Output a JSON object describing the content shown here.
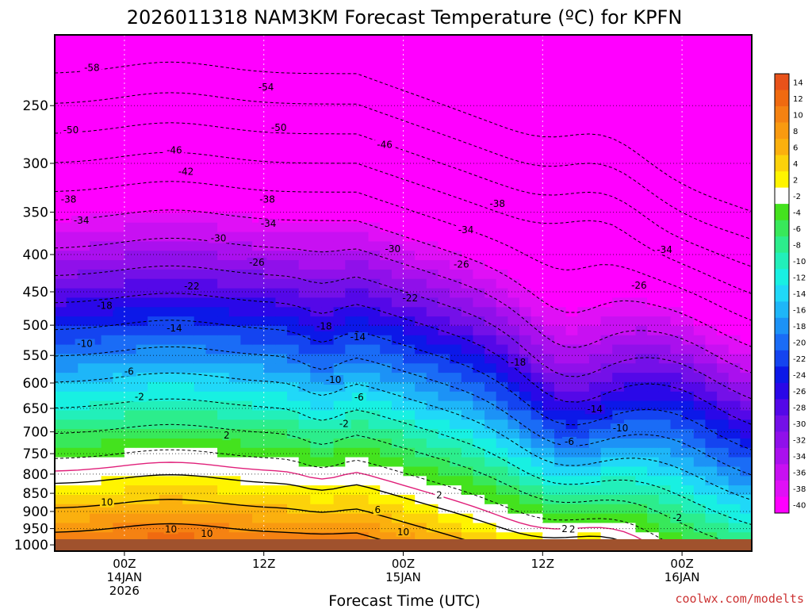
{
  "chart_data": {
    "type": "heatmap",
    "title": "2026011318 NAM3KM Forecast Temperature (ºC) for KPFN",
    "xlabel": "Forecast Time (UTC)",
    "ylabel": "",
    "y_scale": "log",
    "y_reversed": true,
    "y_ticks": [
      250,
      300,
      350,
      400,
      450,
      500,
      550,
      600,
      650,
      700,
      750,
      800,
      850,
      900,
      950,
      1000
    ],
    "y_range": [
      1020,
      200
    ],
    "x_range_hours": [
      -6,
      54
    ],
    "x_ticks": [
      {
        "hour": 0,
        "lines": [
          "00Z",
          "14JAN",
          "2026"
        ]
      },
      {
        "hour": 12,
        "lines": [
          "12Z"
        ]
      },
      {
        "hour": 24,
        "lines": [
          "00Z",
          "15JAN"
        ]
      },
      {
        "hour": 36,
        "lines": [
          "12Z"
        ]
      },
      {
        "hour": 48,
        "lines": [
          "00Z",
          "16JAN"
        ]
      }
    ],
    "grid": true,
    "colorbar": {
      "levels": [
        14,
        12,
        10,
        8,
        6,
        4,
        2,
        -2,
        -4,
        -6,
        -8,
        -10,
        -12,
        -14,
        -16,
        -18,
        -20,
        -22,
        -24,
        -26,
        -28,
        -30,
        -32,
        -34,
        -36,
        -38,
        -40
      ],
      "colors": [
        "#e8521a",
        "#f06a10",
        "#f58212",
        "#f99a10",
        "#fbb00e",
        "#fcd20a",
        "#fff400",
        "#ffffff",
        "#44e21e",
        "#38e85a",
        "#2ced8c",
        "#22efba",
        "#18f0e2",
        "#20d8f8",
        "#1eb6f8",
        "#1c92f6",
        "#1a6cf6",
        "#1444f0",
        "#0c18e8",
        "#2a08e8",
        "#5408e8",
        "#7410e8",
        "#9010ea",
        "#aa10ee",
        "#c810f2",
        "#e010f6",
        "#ff00ff"
      ],
      "placement": "right"
    },
    "contour_labels": [
      {
        "value": "-58",
        "hour": -2.8,
        "p": 222
      },
      {
        "value": "-54",
        "hour": 12.2,
        "p": 236
      },
      {
        "value": "-50",
        "hour": -4.6,
        "p": 270
      },
      {
        "value": "-50",
        "hour": 13.3,
        "p": 268
      },
      {
        "value": "-46",
        "hour": 4.3,
        "p": 288
      },
      {
        "value": "-46",
        "hour": 22.4,
        "p": 283
      },
      {
        "value": "-42",
        "hour": 5.3,
        "p": 308
      },
      {
        "value": "-38",
        "hour": -4.8,
        "p": 336
      },
      {
        "value": "-38",
        "hour": 12.3,
        "p": 336
      },
      {
        "value": "-38",
        "hour": 32.1,
        "p": 341
      },
      {
        "value": "-34",
        "hour": -3.7,
        "p": 359
      },
      {
        "value": "-34",
        "hour": 12.4,
        "p": 363
      },
      {
        "value": "-34",
        "hour": 29.4,
        "p": 370
      },
      {
        "value": "-34",
        "hour": 46.5,
        "p": 394
      },
      {
        "value": "-30",
        "hour": 8.1,
        "p": 380
      },
      {
        "value": "-30",
        "hour": 23.1,
        "p": 393
      },
      {
        "value": "-26",
        "hour": 11.4,
        "p": 410
      },
      {
        "value": "-26",
        "hour": 29.0,
        "p": 413
      },
      {
        "value": "-26",
        "hour": 44.3,
        "p": 441
      },
      {
        "value": "-22",
        "hour": 5.8,
        "p": 442
      },
      {
        "value": "-22",
        "hour": 24.6,
        "p": 459
      },
      {
        "value": "-18",
        "hour": -1.7,
        "p": 470
      },
      {
        "value": "-18",
        "hour": 17.2,
        "p": 502
      },
      {
        "value": "-18",
        "hour": 33.9,
        "p": 562
      },
      {
        "value": "-14",
        "hour": 4.3,
        "p": 505
      },
      {
        "value": "-14",
        "hour": 20.1,
        "p": 519
      },
      {
        "value": "-14",
        "hour": 40.5,
        "p": 652
      },
      {
        "value": "-10",
        "hour": -3.4,
        "p": 530
      },
      {
        "value": "-10",
        "hour": 18.0,
        "p": 594
      },
      {
        "value": "-10",
        "hour": 42.7,
        "p": 692
      },
      {
        "value": "-6",
        "hour": 0.4,
        "p": 579
      },
      {
        "value": "-6",
        "hour": 20.2,
        "p": 628
      },
      {
        "value": "-6",
        "hour": 38.3,
        "p": 722
      },
      {
        "value": "-2",
        "hour": 1.3,
        "p": 627
      },
      {
        "value": "-2",
        "hour": 18.9,
        "p": 683
      },
      {
        "value": "-2",
        "hour": 38.4,
        "p": 952
      },
      {
        "value": "-2",
        "hour": 47.6,
        "p": 918
      },
      {
        "value": "2",
        "hour": 8.8,
        "p": 708
      },
      {
        "value": "2",
        "hour": 27.1,
        "p": 855
      },
      {
        "value": "2",
        "hour": 37.9,
        "p": 951
      },
      {
        "value": "6",
        "hour": 21.8,
        "p": 896
      },
      {
        "value": "10",
        "hour": -1.5,
        "p": 875
      },
      {
        "value": "10",
        "hour": 4.0,
        "p": 952
      },
      {
        "value": "10",
        "hour": 7.1,
        "p": 965
      },
      {
        "value": "10",
        "hour": 24.0,
        "p": 960
      }
    ]
  },
  "credit": "coolwx.com/modelts"
}
